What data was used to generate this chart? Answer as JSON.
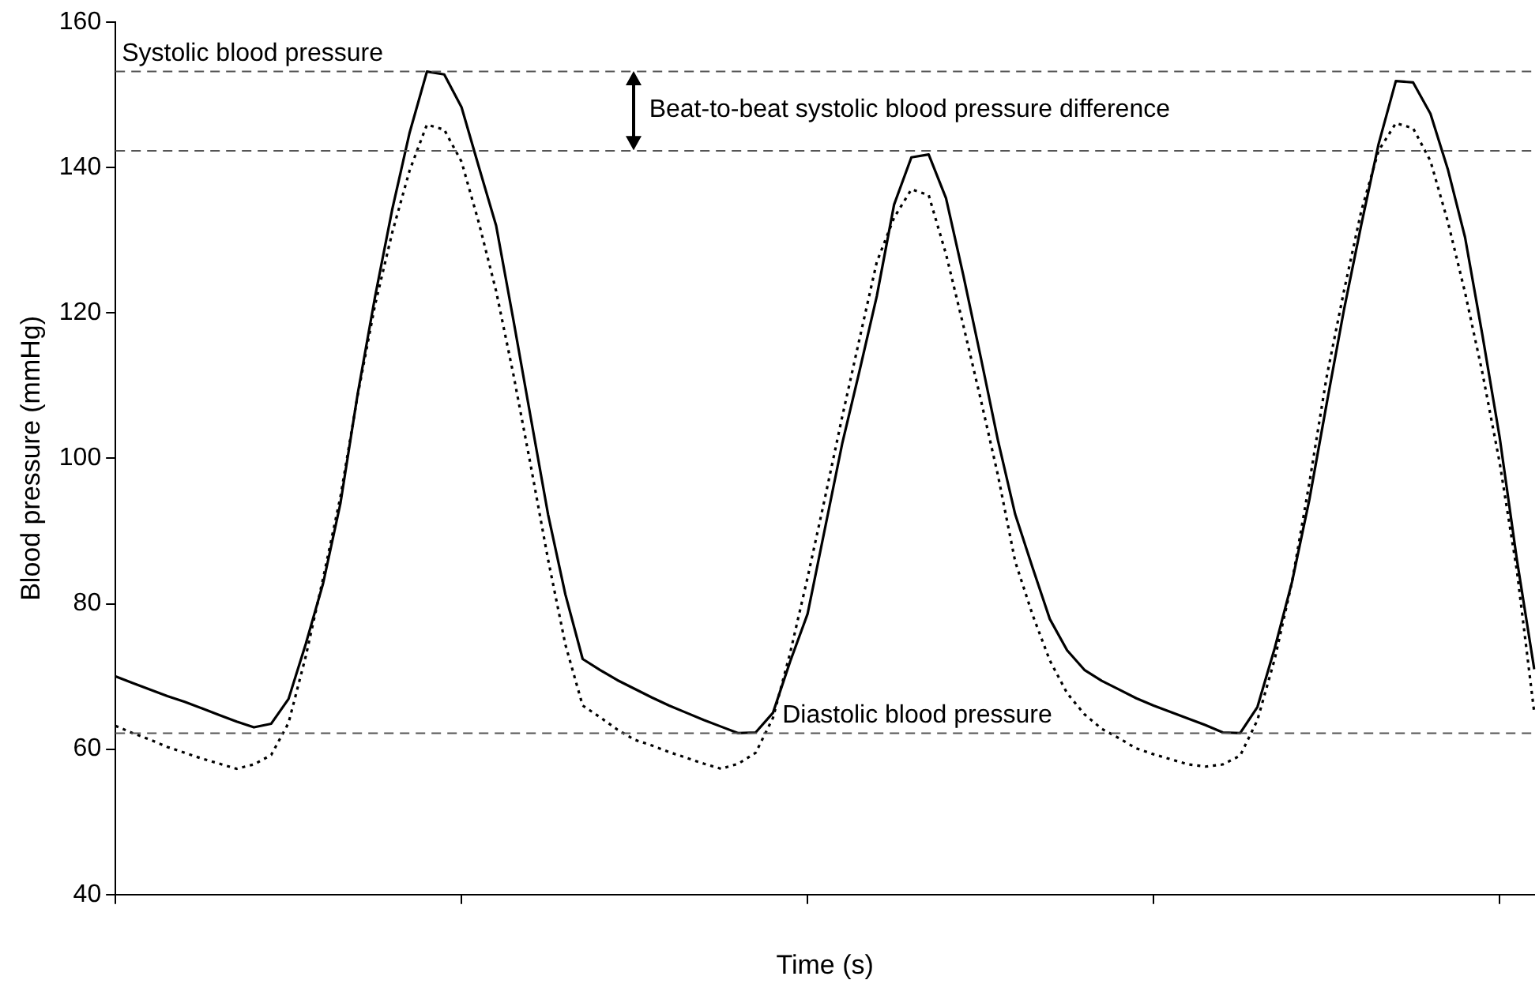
{
  "chart_data": {
    "type": "line",
    "xlabel": "Time (s)",
    "ylabel": "Blood pressure (mmHg)",
    "categories": [
      null,
      null,
      null,
      null,
      null,
      null,
      null,
      null,
      null,
      null,
      null,
      null,
      null,
      null,
      null,
      null,
      null,
      null,
      null,
      null,
      null,
      null,
      null,
      null,
      null,
      null,
      null,
      null,
      null,
      null,
      null,
      null,
      null,
      null,
      null,
      null,
      null,
      null,
      null,
      null,
      null,
      null,
      null,
      null,
      null,
      null,
      null,
      null,
      null,
      null,
      null,
      null,
      null,
      null,
      null,
      null,
      null,
      null,
      null,
      null,
      null,
      null,
      null,
      null,
      null,
      null,
      null,
      null,
      null,
      null,
      null,
      null,
      null,
      null,
      null,
      null,
      null,
      null,
      null,
      null,
      null,
      null,
      null
    ],
    "ylim": [
      40,
      160
    ],
    "yticks": [
      40,
      60,
      80,
      100,
      120,
      140,
      160
    ],
    "grid": false,
    "marker": "none",
    "series": [
      {
        "color": "#000000",
        "line_style": "solid",
        "values": [
          70,
          69.1,
          68.2,
          67.3,
          66.5,
          65.6,
          64.7,
          63.8,
          63,
          63.5,
          66.9,
          74.5,
          82.8,
          93.8,
          108.9,
          122.2,
          134.3,
          144.8,
          153.2,
          152.8,
          148.3,
          140.1,
          132,
          119,
          105.6,
          92.3,
          81.3,
          72.4,
          70.9,
          69.5,
          68.3,
          67.1,
          66,
          65,
          64,
          63.1,
          62.2,
          62.3,
          65,
          72.1,
          78.6,
          90.3,
          102,
          112,
          122.3,
          134.9,
          141.4,
          141.8,
          135.8,
          125.2,
          114,
          102.5,
          92.3,
          85,
          77.9,
          73.6,
          70.9,
          69.4,
          68.2,
          67,
          66,
          65.1,
          64.2,
          63.3,
          62.3,
          62.2,
          65.8,
          73.9,
          83,
          94.3,
          107.5,
          120.4,
          132.1,
          143.2,
          151.9,
          151.7,
          147.4,
          139.8,
          130.4,
          117,
          102.9,
          86,
          71
        ]
      },
      {
        "color": "#000000",
        "line_style": "dotted",
        "values": [
          63.2,
          62.2,
          61.3,
          60.3,
          59.5,
          58.7,
          58,
          57.3,
          57.9,
          59.2,
          63.6,
          72.8,
          83.5,
          94.7,
          108.7,
          121.1,
          131.1,
          139.6,
          145.9,
          145.2,
          140.8,
          132.4,
          123,
          111.5,
          99,
          86.1,
          74.4,
          66,
          64.4,
          62.7,
          61.3,
          60.5,
          59.6,
          58.8,
          58,
          57.3,
          58,
          59.5,
          64.3,
          73.3,
          83.6,
          94.5,
          105.7,
          116.4,
          127,
          133.1,
          137,
          136.2,
          128.1,
          118.3,
          108.2,
          97.7,
          85.8,
          78.5,
          72.2,
          67.7,
          64.8,
          62.8,
          61.5,
          60.1,
          59.3,
          58.6,
          57.9,
          57.6,
          57.9,
          59.1,
          64,
          72.4,
          83,
          96.6,
          111.2,
          123,
          134,
          142.3,
          146.1,
          145.4,
          140.9,
          132.6,
          122.8,
          111.8,
          99.4,
          84.5,
          65
        ]
      }
    ],
    "ref_lines": [
      {
        "axis": "y",
        "value": 153.2,
        "label": "Systolic blood pressure",
        "color": "#555555",
        "line_style": "dashed"
      },
      {
        "axis": "y",
        "value": 142.3,
        "label": null,
        "color": "#555555",
        "line_style": "dashed"
      },
      {
        "axis": "y",
        "value": 62.2,
        "label": "Diastolic blood pressure",
        "color": "#555555",
        "line_style": "dashed"
      }
    ],
    "annotations": [
      "Beat-to-beat systolic blood pressure difference"
    ],
    "legend": false
  }
}
